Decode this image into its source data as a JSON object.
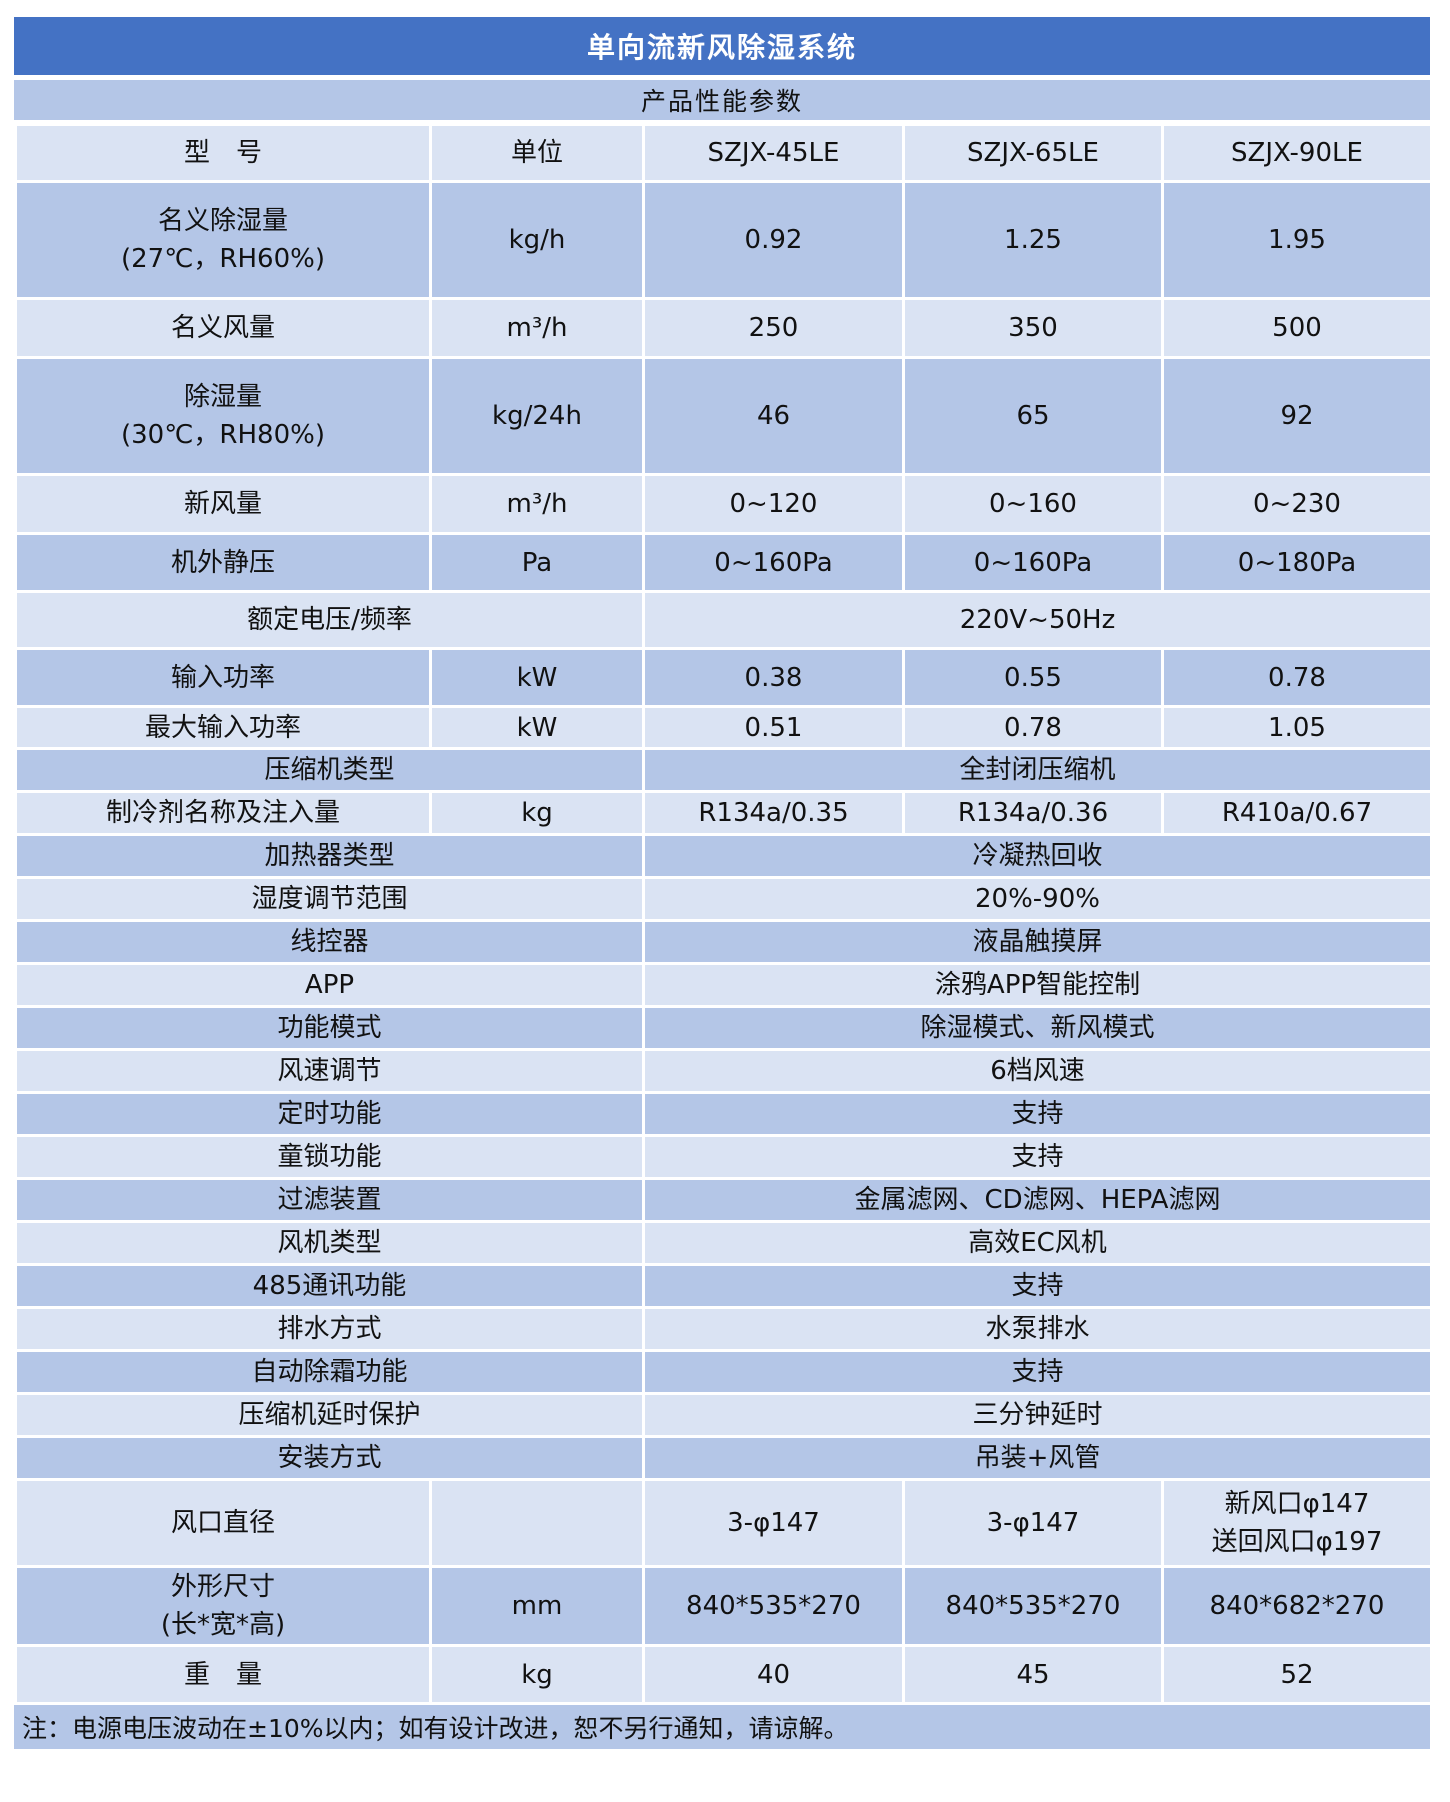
{
  "title": "单向流新风除湿系统",
  "subtitle": "产品性能参数",
  "colors": {
    "header": "#4472c4",
    "row_dark": "#b4c6e7",
    "row_light": "#dae3f3"
  },
  "header": [
    "型　号",
    "单位",
    "SZJX-45LE",
    "SZJX-65LE",
    "SZJX-90LE"
  ],
  "rows": [
    {
      "label": [
        "名义除湿量",
        "(27℃，RH60%)"
      ],
      "unit": "kg/h",
      "values": [
        "0.92",
        "1.25",
        "1.95"
      ]
    },
    {
      "label": [
        "名义风量"
      ],
      "unit": "m³/h",
      "values": [
        "250",
        "350",
        "500"
      ]
    },
    {
      "label": [
        "除湿量",
        "(30℃，RH80%)"
      ],
      "unit": "kg/24h",
      "values": [
        "46",
        "65",
        "92"
      ]
    },
    {
      "label": [
        "新风量"
      ],
      "unit": "m³/h",
      "values": [
        "0~120",
        "0~160",
        "0~230"
      ]
    },
    {
      "label": [
        "机外静压"
      ],
      "unit": "Pa",
      "values": [
        "0~160Pa",
        "0~160Pa",
        "0~180Pa"
      ]
    },
    {
      "label": [
        "额定电压/频率"
      ],
      "value": "220V~50Hz"
    },
    {
      "label": [
        "输入功率"
      ],
      "unit": "kW",
      "values": [
        "0.38",
        "0.55",
        "0.78"
      ]
    },
    {
      "label": [
        "最大输入功率"
      ],
      "unit": "kW",
      "values": [
        "0.51",
        "0.78",
        "1.05"
      ]
    },
    {
      "label": [
        "压缩机类型"
      ],
      "value": "全封闭压缩机"
    },
    {
      "label": [
        "制冷剂名称及注入量"
      ],
      "unit": "kg",
      "values": [
        "R134a/0.35",
        "R134a/0.36",
        "R410a/0.67"
      ]
    },
    {
      "label": [
        "加热器类型"
      ],
      "value": "冷凝热回收"
    },
    {
      "label": [
        "湿度调节范围"
      ],
      "value": "20%-90%"
    },
    {
      "label": [
        "线控器"
      ],
      "value": "液晶触摸屏"
    },
    {
      "label": [
        "APP"
      ],
      "value": "涂鸦APP智能控制"
    },
    {
      "label": [
        "功能模式"
      ],
      "value": "除湿模式、新风模式"
    },
    {
      "label": [
        "风速调节"
      ],
      "value": "6档风速"
    },
    {
      "label": [
        "定时功能"
      ],
      "value": "支持"
    },
    {
      "label": [
        "童锁功能"
      ],
      "value": "支持"
    },
    {
      "label": [
        "过滤装置"
      ],
      "value": "金属滤网、CD滤网、HEPA滤网"
    },
    {
      "label": [
        "风机类型"
      ],
      "value": "高效EC风机"
    },
    {
      "label": [
        "485通讯功能"
      ],
      "value": "支持"
    },
    {
      "label": [
        "排水方式"
      ],
      "value": "水泵排水"
    },
    {
      "label": [
        "自动除霜功能"
      ],
      "value": "支持"
    },
    {
      "label": [
        "压缩机延时保护"
      ],
      "value": "三分钟延时"
    },
    {
      "label": [
        "安装方式"
      ],
      "value": "吊装+风管"
    },
    {
      "label": [
        "风口直径"
      ],
      "unit": "",
      "values": [
        "3-φ147",
        "3-φ147",
        "新风口φ147\n送回风口φ197"
      ]
    },
    {
      "label": [
        "外形尺寸",
        "(长*宽*高)"
      ],
      "unit": "mm",
      "values": [
        "840*535*270",
        "840*535*270",
        "840*682*270"
      ]
    },
    {
      "label": [
        "重　量"
      ],
      "unit": "kg",
      "values": [
        "40",
        "45",
        "52"
      ]
    }
  ],
  "note": "注：电源电压波动在±10%以内；如有设计改进，恕不另行通知，请谅解。"
}
